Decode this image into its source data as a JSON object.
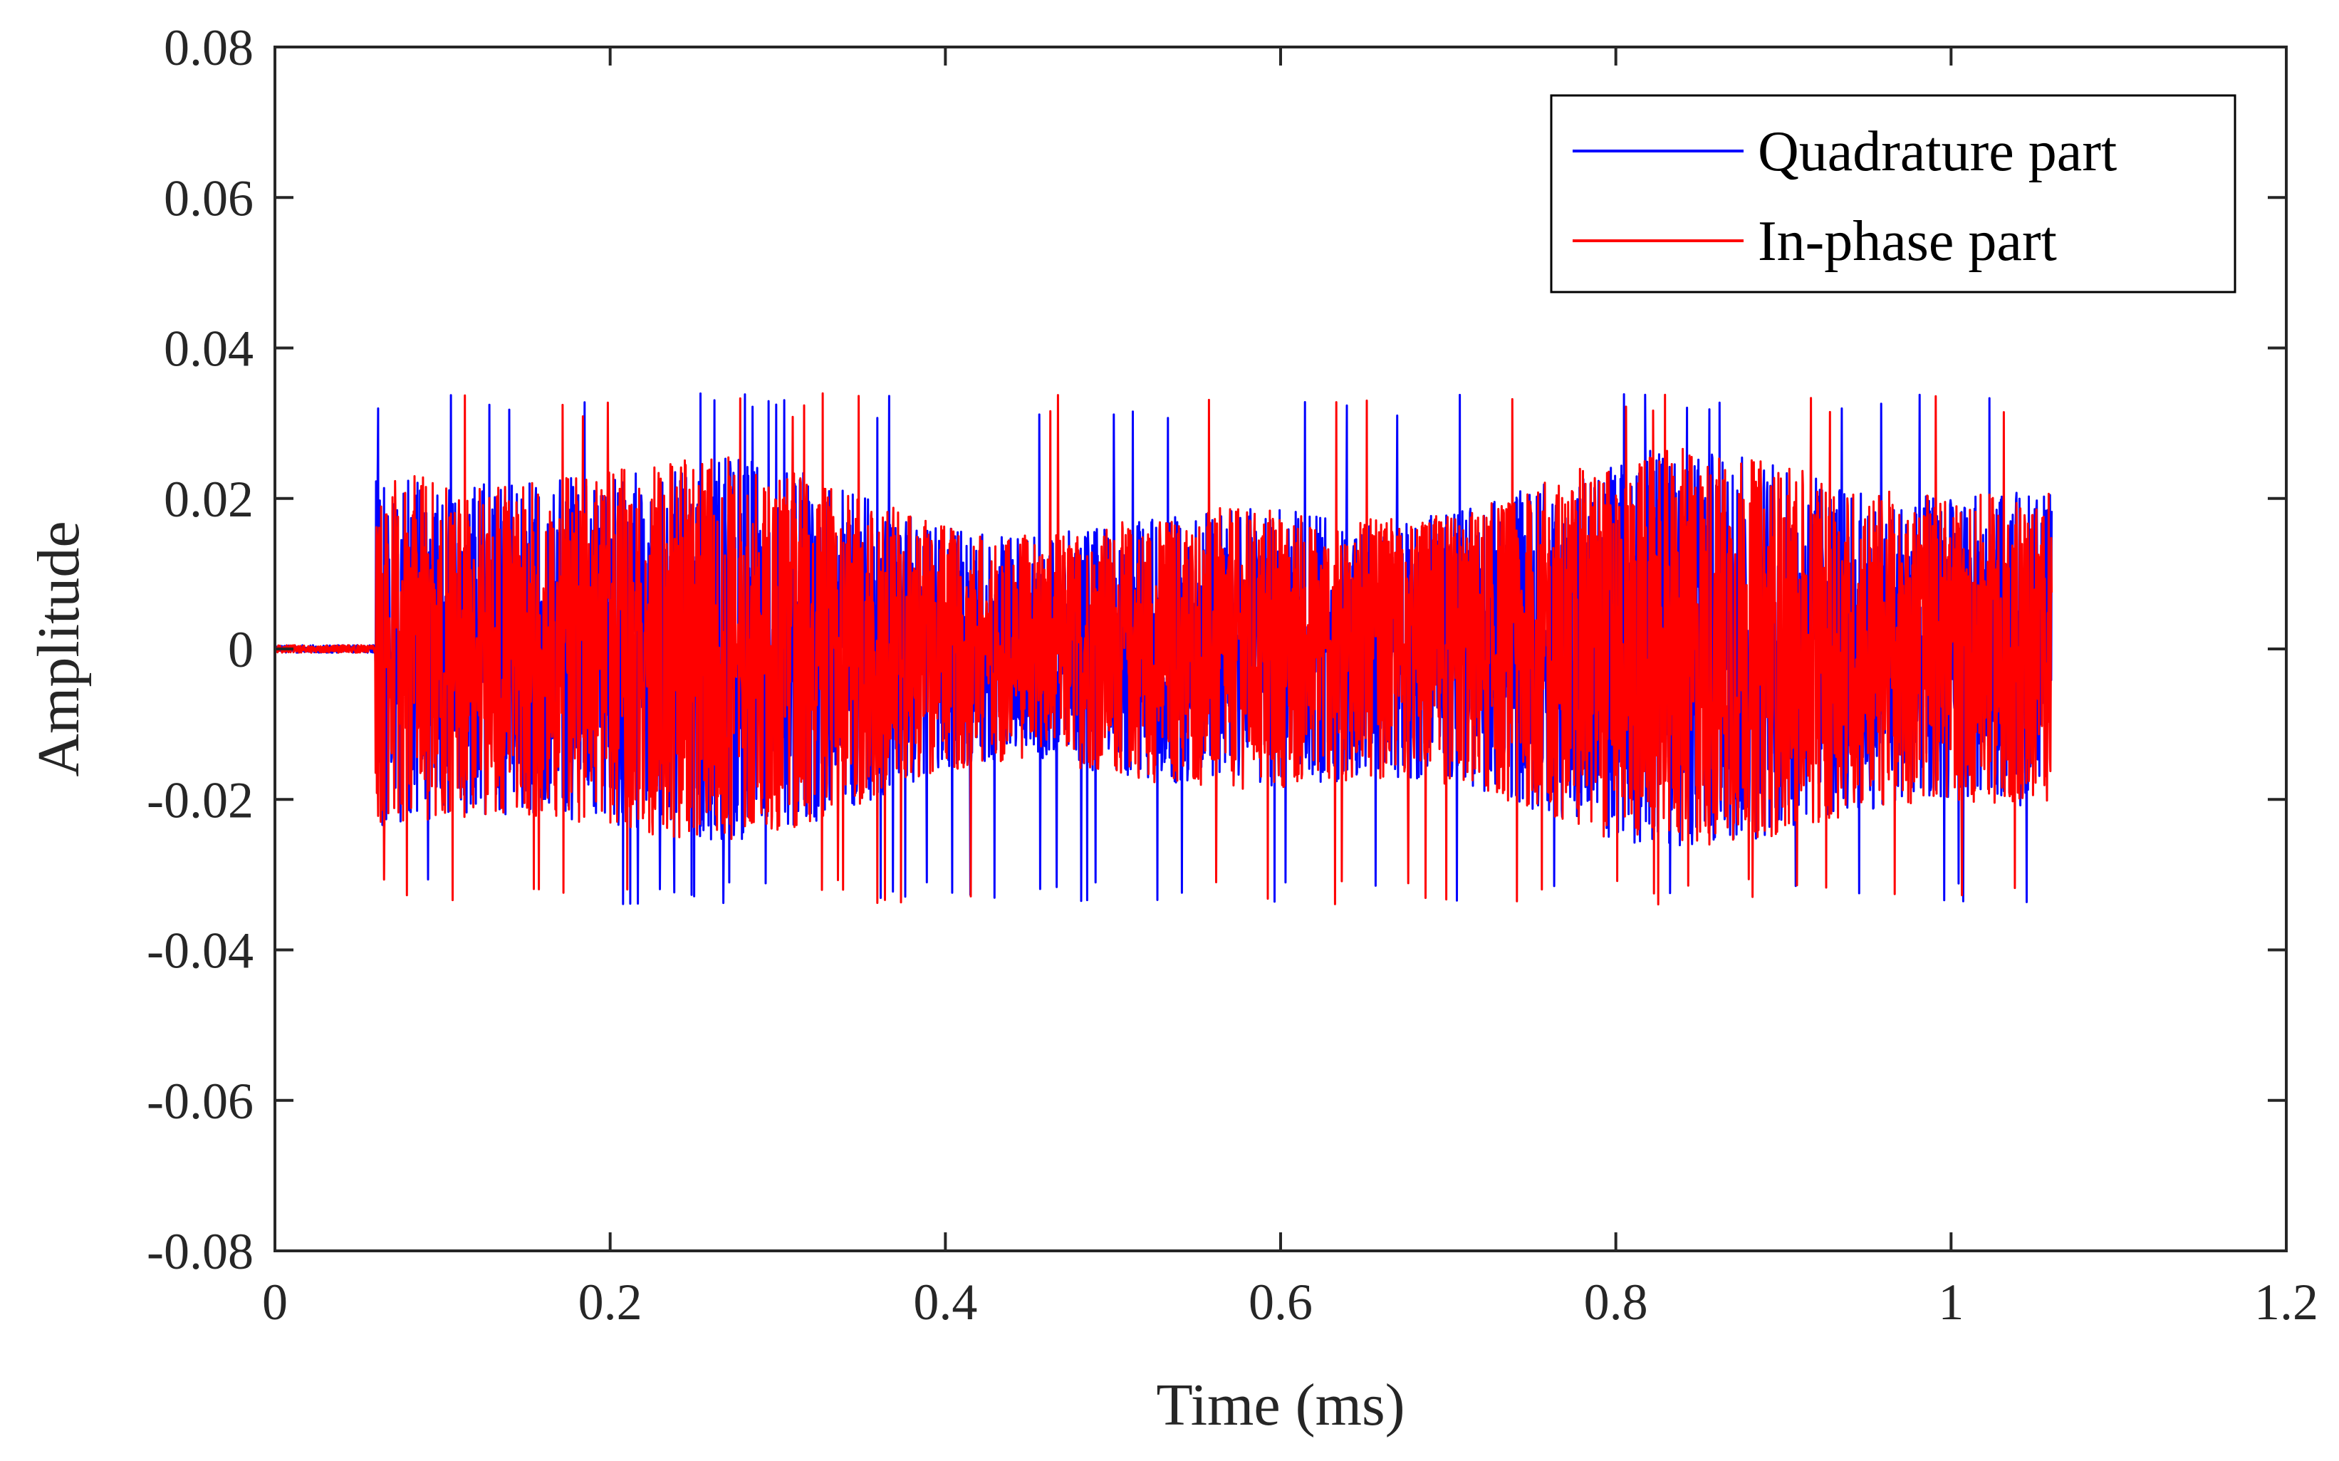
{
  "chart_data": {
    "type": "line",
    "xlabel": "Time (ms)",
    "ylabel": "Amplitude",
    "xlim": [
      0,
      1.2
    ],
    "ylim": [
      -0.08,
      0.08
    ],
    "x_ticks": [
      "0",
      "0.2",
      "0.4",
      "0.6",
      "0.8",
      "1",
      "1.2"
    ],
    "y_ticks": [
      "0.08",
      "0.06",
      "0.04",
      "0.02",
      "0",
      "-0.02",
      "-0.04",
      "-0.06",
      "-0.08"
    ],
    "grid": false,
    "legend_position": "top-right",
    "signal": {
      "x_start": 0,
      "onset": 0.06,
      "x_end": 1.06,
      "pre_onset_amplitude": 0.0005,
      "typical_peak": 0.024,
      "max_peak": 0.034
    },
    "series": [
      {
        "name": "Quadrature part",
        "color": "#0000ff"
      },
      {
        "name": "In-phase part",
        "color": "#ff0000"
      }
    ],
    "title": ""
  }
}
